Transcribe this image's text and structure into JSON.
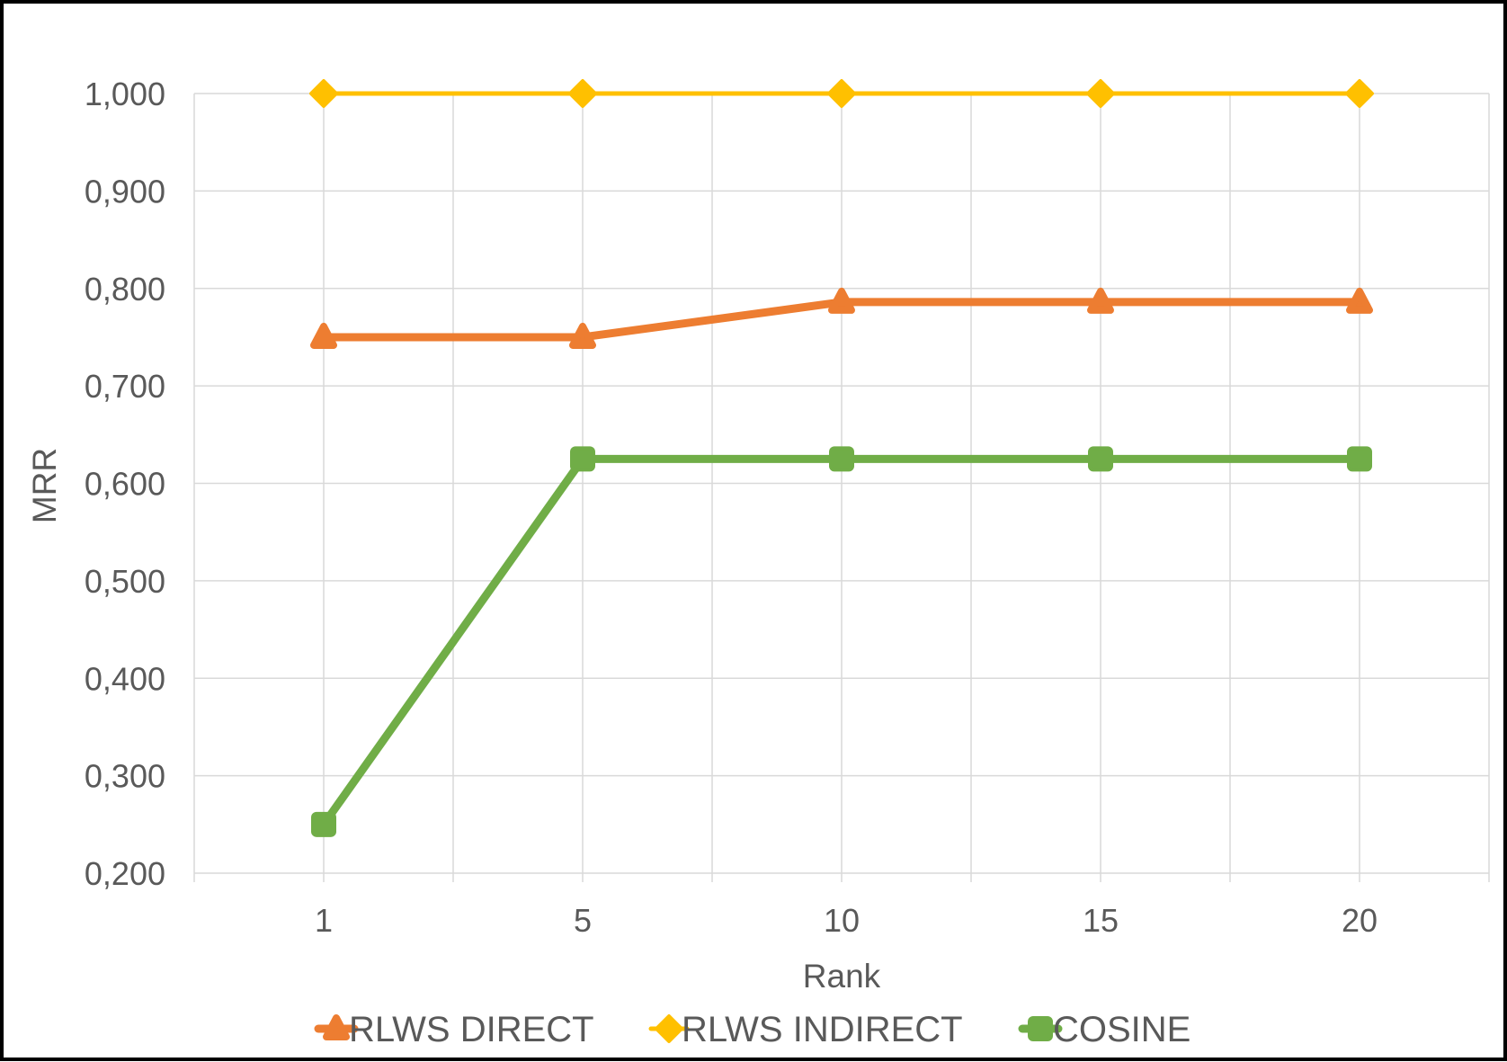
{
  "chart_data": {
    "type": "line",
    "title": "",
    "xlabel": "Rank",
    "ylabel": "MRR",
    "categories": [
      "1",
      "5",
      "10",
      "15",
      "20"
    ],
    "ylim": [
      0.2,
      1.0
    ],
    "y_ticks": [
      {
        "value": 1.0,
        "label": "1,000"
      },
      {
        "value": 0.9,
        "label": "0,900"
      },
      {
        "value": 0.8,
        "label": "0,800"
      },
      {
        "value": 0.7,
        "label": "0,700"
      },
      {
        "value": 0.6,
        "label": "0,600"
      },
      {
        "value": 0.5,
        "label": "0,500"
      },
      {
        "value": 0.4,
        "label": "0,400"
      },
      {
        "value": 0.3,
        "label": "0,300"
      },
      {
        "value": 0.2,
        "label": "0,200"
      }
    ],
    "grid": true,
    "legend_position": "bottom",
    "series": [
      {
        "name": "RLWS DIRECT",
        "color": "#ED7D31",
        "marker": "triangle",
        "values": [
          0.75,
          0.75,
          0.786,
          0.786,
          0.786
        ]
      },
      {
        "name": "RLWS INDIRECT",
        "color": "#FFC000",
        "marker": "diamond",
        "values": [
          1.0,
          1.0,
          1.0,
          1.0,
          1.0
        ]
      },
      {
        "name": "COSINE",
        "color": "#70AD47",
        "marker": "square",
        "values": [
          0.25,
          0.625,
          0.625,
          0.625,
          0.625
        ]
      }
    ]
  }
}
